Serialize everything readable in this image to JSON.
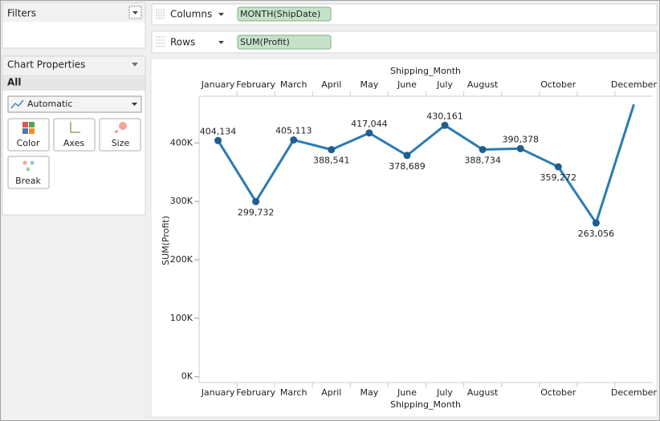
{
  "ui": {
    "filters": {
      "title": "Filters"
    },
    "chart_properties": {
      "title": "Chart Properties",
      "scope": "All",
      "mark_type": "Automatic",
      "buttons": [
        "Color",
        "Axes",
        "Size",
        "Break"
      ]
    },
    "shelves": {
      "columns": {
        "label": "Columns",
        "pill": "MONTH(ShipDate)"
      },
      "rows": {
        "label": "Rows",
        "pill": "SUM(Profit)"
      }
    }
  },
  "chart_data": {
    "type": "line",
    "x_label": "Shipping_Month",
    "y_label": "SUM(Profit)",
    "categories": [
      "January",
      "February",
      "March",
      "April",
      "May",
      "June",
      "July",
      "August",
      null,
      "October",
      null,
      "December"
    ],
    "values": [
      404134,
      299732,
      405113,
      388541,
      417044,
      378689,
      430161,
      388734,
      390378,
      359272,
      263056,
      466000
    ],
    "value_labels": [
      "404,134",
      "299,732",
      "405,113",
      "388,541",
      "417,044",
      "378,689",
      "430,161",
      "388,734",
      "390,378",
      "359,272",
      "263,056",
      null
    ],
    "color": "#2b7bb3",
    "marker_color": "#1f5e8e",
    "ylim": [
      -10000,
      480000
    ],
    "yticks": [
      {
        "value": 0,
        "label": "0K"
      },
      {
        "value": 100000,
        "label": "100K"
      },
      {
        "value": 200000,
        "label": "200K"
      },
      {
        "value": 300000,
        "label": "300K"
      },
      {
        "value": 400000,
        "label": "400K"
      }
    ]
  }
}
